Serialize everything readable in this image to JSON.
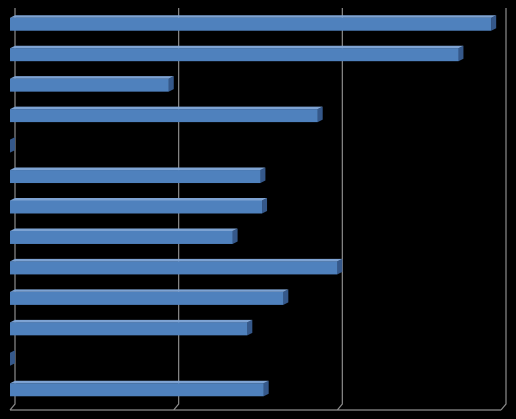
{
  "chart_data": {
    "type": "bar",
    "orientation": "horizontal",
    "style": "3d",
    "grid": true,
    "legend": "none",
    "title": "",
    "xlabel": "",
    "ylabel": "",
    "xlim": [
      0,
      3
    ],
    "categories": [
      "",
      "",
      "",
      "",
      "",
      "",
      "",
      "",
      "",
      "",
      "",
      "",
      ""
    ],
    "series": [
      {
        "values": [
          2.94,
          2.74,
          0.97,
          1.88,
          0.0,
          1.53,
          1.54,
          1.36,
          2.0,
          1.67,
          1.45,
          0.0,
          1.55
        ]
      }
    ],
    "colors": {
      "background": "#000000",
      "bar_front": "#4f81bd",
      "bar_top": "#7ea3d3",
      "bar_side": "#35588a",
      "grid": "#8c8c8c"
    }
  }
}
